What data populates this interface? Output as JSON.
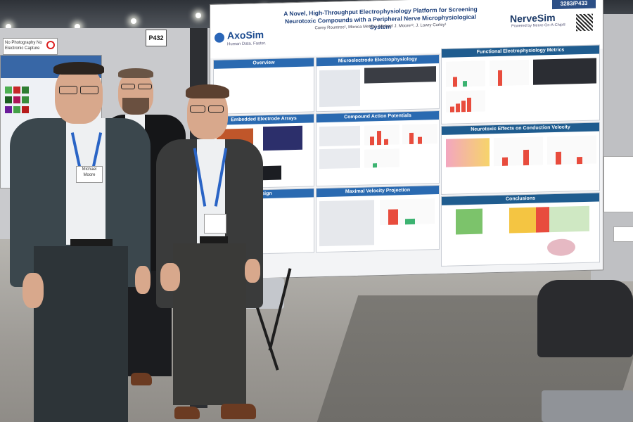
{
  "scene": {
    "board_sign_left": "P432",
    "board_code": "3283/P433",
    "notice": "No Photography\nNo Electronic Capture"
  },
  "poster": {
    "title": "A Novel, High-Throughput Electrophysiology Platform for Screening Neurotoxic Compounds with a Peripheral Nerve Microphysiological System",
    "authors": "Corey Rountree¹, Monica Metea¹, Michael J. Moore¹², J. Lowry Curley¹",
    "logo_left": {
      "name": "AxoSim",
      "tagline": "Human Data. Faster."
    },
    "logo_right": {
      "name": "NerveSim",
      "tagline": "Powered by Nerve-On-A-Chip®"
    },
    "sections": {
      "overview": "Overview",
      "embedded": "Embedded Electrode Arrays",
      "design": "Design",
      "microelectrode": "Microelectrode Electrophysiology",
      "cap": "Compound Action Potentials",
      "maxvel": "Maximal Velocity Projection",
      "functional": "Functional Electrophysiology Metrics",
      "neurotoxic": "Neurotoxic Effects on Conduction Velocity",
      "conclusions": "Conclusions"
    }
  },
  "badges": {
    "left": "Michael Moore",
    "center": ""
  },
  "colors": {
    "poster_header_blue": "#2a6ab1",
    "brand_navy": "#1c3a68",
    "lanyard": "#2a64c5"
  }
}
